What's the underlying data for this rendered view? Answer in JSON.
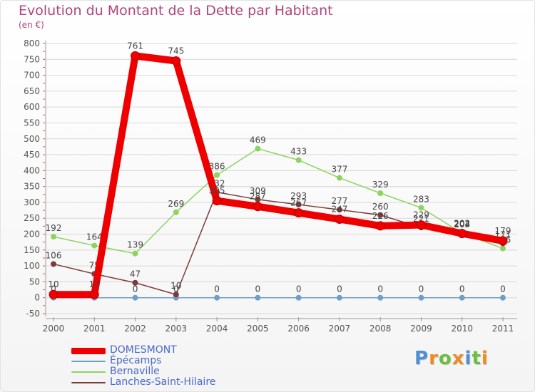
{
  "title": "Evolution du Montant de la Dette par Habitant",
  "subtitle": "(en €)",
  "logo": {
    "text": "Proxiti",
    "letters": [
      {
        "ch": "P",
        "color": "#4d8fd6"
      },
      {
        "ch": "r",
        "color": "#f08a24"
      },
      {
        "ch": "o",
        "color": "#6cbf3b"
      },
      {
        "ch": "x",
        "color": "#f08a24"
      },
      {
        "ch": "i",
        "color": "#4d8fd6"
      },
      {
        "ch": "t",
        "color": "#6cbf3b"
      },
      {
        "ch": "i",
        "color": "#f08a24"
      }
    ]
  },
  "chart_data": {
    "type": "line",
    "title": "Evolution du Montant de la Dette par Habitant",
    "ylabel": "(en €)",
    "x": [
      2000,
      2001,
      2002,
      2003,
      2004,
      2005,
      2006,
      2007,
      2008,
      2009,
      2010,
      2011
    ],
    "ylim": [
      -50,
      800
    ],
    "yticks": [
      -50,
      0,
      50,
      100,
      150,
      200,
      250,
      300,
      350,
      400,
      450,
      500,
      550,
      600,
      650,
      700,
      750,
      800
    ],
    "grid": true,
    "legend_position": "bottom-left",
    "series": [
      {
        "name": "DOMESMONT",
        "color": "#ee0000",
        "emphasis": true,
        "values": [
          10,
          10,
          761,
          745,
          305,
          287,
          267,
          247,
          226,
          229,
          202,
          179
        ]
      },
      {
        "name": "Épécamps",
        "color": "#6f9fc7",
        "emphasis": false,
        "values": [
          0,
          0,
          0,
          0,
          0,
          0,
          0,
          0,
          0,
          0,
          0,
          0
        ]
      },
      {
        "name": "Bernaville",
        "color": "#8dd35f",
        "emphasis": false,
        "values": [
          192,
          164,
          139,
          269,
          386,
          469,
          433,
          377,
          329,
          283,
          203,
          155
        ]
      },
      {
        "name": "Lanches-Saint-Hilaire",
        "color": "#7d3c3c",
        "emphasis": false,
        "values": [
          106,
          75,
          47,
          10,
          332,
          309,
          293,
          277,
          260,
          221,
          204,
          171
        ]
      }
    ]
  }
}
